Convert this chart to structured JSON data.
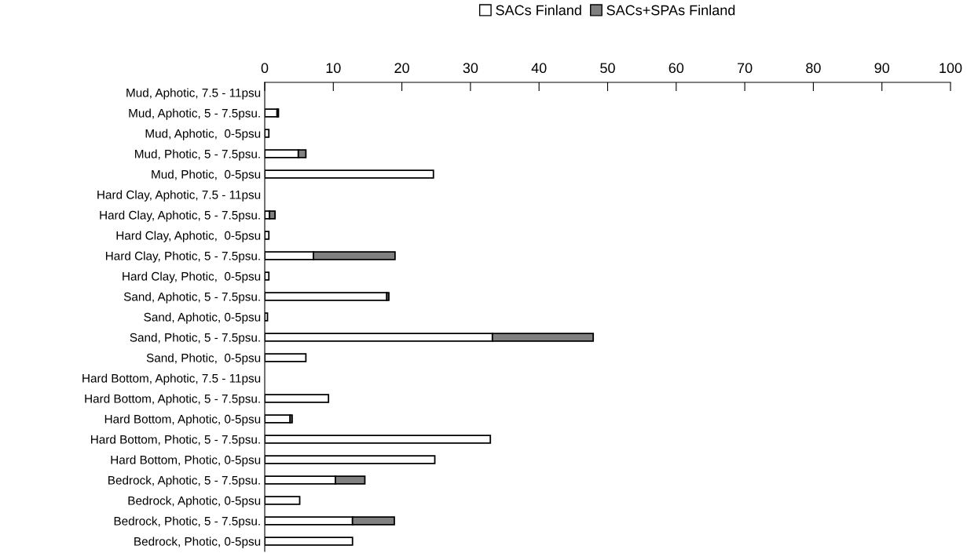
{
  "chart_data": {
    "type": "bar",
    "orientation": "horizontal",
    "stacked": true,
    "categories": [
      "Mud, Aphotic, 7.5 - 11psu",
      "Mud, Aphotic, 5 - 7.5psu.",
      "Mud, Aphotic,  0-5psu",
      "Mud, Photic, 5 - 7.5psu.",
      "Mud, Photic,  0-5psu",
      "Hard Clay, Aphotic, 7.5 - 11psu",
      "Hard Clay, Aphotic, 5 - 7.5psu.",
      "Hard Clay, Aphotic,  0-5psu",
      "Hard Clay, Photic, 5 - 7.5psu.",
      "Hard Clay, Photic,  0-5psu",
      "Sand, Aphotic, 5 - 7.5psu.",
      "Sand, Aphotic, 0-5psu",
      "Sand, Photic, 5 - 7.5psu.",
      "Sand, Photic,  0-5psu",
      "Hard Bottom, Aphotic, 7.5 - 11psu",
      "Hard Bottom, Aphotic, 5 - 7.5psu.",
      "Hard Bottom, Aphotic, 0-5psu",
      "Hard Bottom, Photic, 5 - 7.5psu.",
      "Hard Bottom, Photic, 0-5psu",
      "Bedrock, Aphotic, 5 - 7.5psu.",
      "Bedrock, Aphotic, 0-5psu",
      "Bedrock, Photic, 5 - 7.5psu.",
      "Bedrock, Photic, 0-5psu"
    ],
    "series": [
      {
        "name": "SACs Finland",
        "color": "#ffffff",
        "values": [
          0,
          1.8,
          0.6,
          4.9,
          24.6,
          0,
          0.7,
          0.6,
          7.1,
          0.6,
          17.8,
          0.4,
          33.2,
          6.0,
          0,
          9.3,
          3.7,
          32.9,
          24.8,
          10.3,
          5.1,
          12.8,
          12.8
        ]
      },
      {
        "name": "SACs+SPAs Finland",
        "color": "#808080",
        "values": [
          0,
          0.2,
          0,
          1.1,
          0,
          0,
          0.8,
          0,
          11.9,
          0,
          0.3,
          0,
          14.7,
          0,
          0,
          0,
          0.3,
          0,
          0,
          4.3,
          0,
          6.1,
          0
        ]
      }
    ],
    "xlim": [
      0,
      100
    ],
    "xticks": [
      0,
      10,
      20,
      30,
      40,
      50,
      60,
      70,
      80,
      90,
      100
    ],
    "grid": false,
    "legend": "top"
  }
}
